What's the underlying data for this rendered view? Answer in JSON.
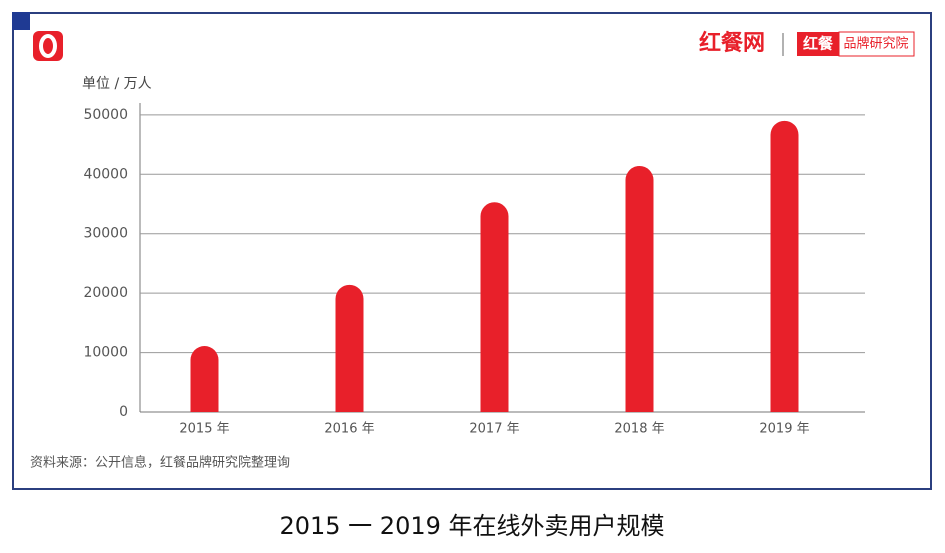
{
  "brand": {
    "site": "红餐网",
    "badge": "红餐",
    "institute": "品牌研究院"
  },
  "chart_data": {
    "type": "bar",
    "title": "2015 一 2019 年在线外卖用户规模",
    "y_label": "单位 / 万人",
    "source": "资料来源：公开信息，红餐品牌研究院整理询",
    "categories": [
      "2015 年",
      "2016 年",
      "2017 年",
      "2018 年",
      "2019 年"
    ],
    "values": [
      11100,
      21400,
      35300,
      41400,
      49000
    ],
    "color": "#e8202a",
    "ylim": [
      0,
      52000
    ],
    "yticks": [
      0,
      10000,
      20000,
      30000,
      40000,
      50000
    ],
    "grid": true
  }
}
